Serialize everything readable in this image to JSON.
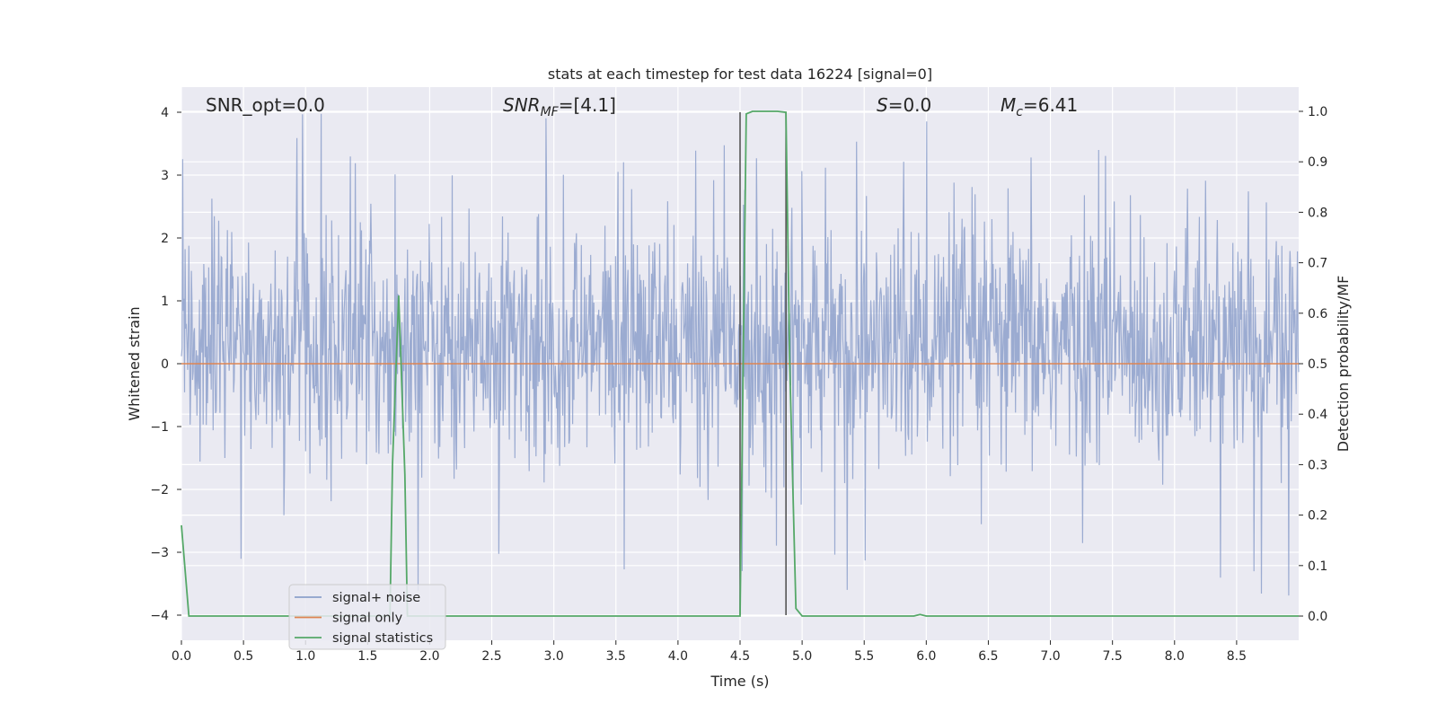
{
  "chart_data": {
    "type": "line",
    "title": "stats at each timestep for test data 16224 [signal=0]",
    "xlabel": "Time (s)",
    "ylabel": "Whitened strain",
    "ylabel_right": "Detection probability/MF",
    "xlim": [
      0.0,
      9.0
    ],
    "ylim": [
      -4.4,
      4.4
    ],
    "ylim_right": [
      -0.048,
      1.048
    ],
    "x_ticks": [
      "0.0",
      "0.5",
      "1.0",
      "1.5",
      "2.0",
      "2.5",
      "3.0",
      "3.5",
      "4.0",
      "4.5",
      "5.0",
      "5.5",
      "6.0",
      "6.5",
      "7.0",
      "7.5",
      "8.0",
      "8.5"
    ],
    "y_ticks": [
      "4",
      "3",
      "2",
      "1",
      "0",
      "−1",
      "−2",
      "−3",
      "−4"
    ],
    "y_ticks_right": [
      "1.0",
      "0.9",
      "0.8",
      "0.7",
      "0.6",
      "0.5",
      "0.4",
      "0.3",
      "0.2",
      "0.1",
      "0.0"
    ],
    "grid": true,
    "annotations": [
      {
        "id": "snr-opt",
        "text": "SNR_opt=0.0"
      },
      {
        "id": "snr-mf",
        "text": "SNR_MF=[4.1]"
      },
      {
        "id": "s-val",
        "text": "S=0.0"
      },
      {
        "id": "mc-val",
        "text": "M_c=6.41"
      }
    ],
    "series": [
      {
        "name": "signal+ noise",
        "color": "#8da0cb",
        "description_level": "dense whitened noise between roughly -2.5 and 3.5 with spikes to +4 and -4"
      },
      {
        "name": "signal only",
        "color": "#dd8452",
        "x": [
          0.0,
          9.0
        ],
        "y": [
          0.0,
          0.0
        ]
      },
      {
        "name": "signal statistics",
        "color": "#55a868",
        "axis": "right",
        "x": [
          0.0,
          0.06,
          0.1,
          0.15,
          1.68,
          1.7,
          1.75,
          1.8,
          1.82,
          4.48,
          4.5,
          4.55,
          4.6,
          4.8,
          4.87,
          4.9,
          4.95,
          5.0,
          5.85,
          5.9,
          5.95,
          6.0,
          9.0
        ],
        "y": [
          0.18,
          0.0,
          0.0,
          0.0,
          0.0,
          0.3,
          0.635,
          0.28,
          0.0,
          0.0,
          0.0,
          0.995,
          1.0,
          1.0,
          0.998,
          0.5,
          0.015,
          0.0,
          0.0,
          0.0,
          0.003,
          0.0,
          0.0
        ]
      }
    ],
    "vlines": [
      {
        "x": 4.5,
        "y0": -4.0,
        "y1": 4.0
      },
      {
        "x": 4.87,
        "y0": -4.0,
        "y1": 4.0
      }
    ],
    "legend": {
      "position": "lower-left",
      "entries": [
        "signal+ noise",
        "signal only",
        "signal statistics"
      ]
    }
  }
}
